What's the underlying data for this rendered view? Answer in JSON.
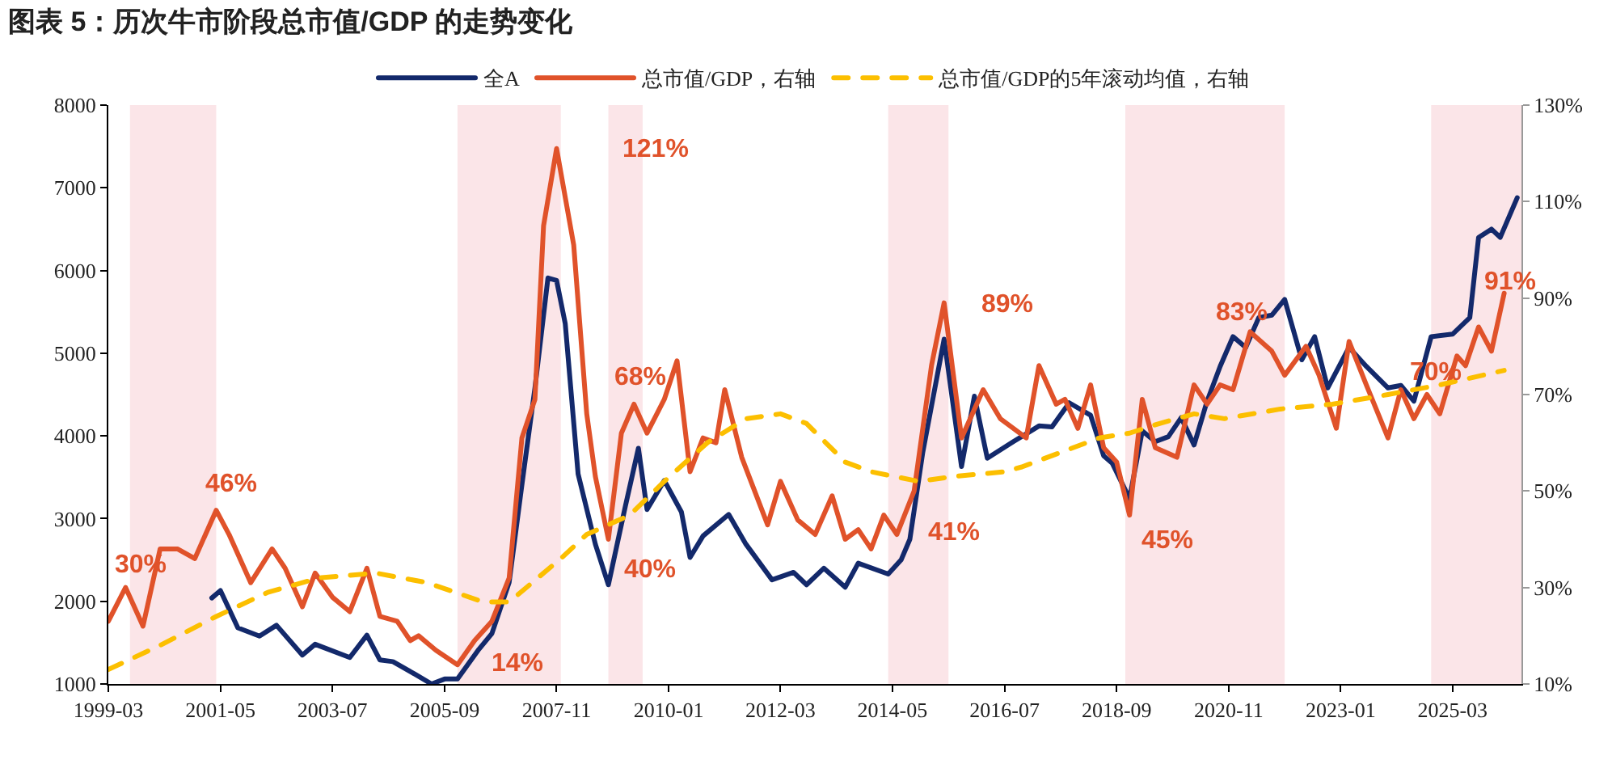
{
  "chart_data": {
    "type": "line",
    "title": "图表 5：历次牛市阶段总市值/GDP 的走势变化",
    "xlim": [
      "1999-03",
      "2026-07"
    ],
    "xticks": [
      "1999-03",
      "2001-05",
      "2003-07",
      "2005-09",
      "2007-11",
      "2010-01",
      "2012-03",
      "2014-05",
      "2016-07",
      "2018-09",
      "2020-11",
      "2023-01",
      "2025-03"
    ],
    "ylim": [
      1000,
      8000
    ],
    "yticks": [
      1000,
      2000,
      3000,
      4000,
      5000,
      6000,
      7000,
      8000
    ],
    "y2lim": [
      10,
      130
    ],
    "y2ticks": [
      {
        "value": 10,
        "label": "10%"
      },
      {
        "value": 30,
        "label": "30%"
      },
      {
        "value": 50,
        "label": "50%"
      },
      {
        "value": 70,
        "label": "70%"
      },
      {
        "value": 90,
        "label": "90%"
      },
      {
        "value": 110,
        "label": "110%"
      },
      {
        "value": 130,
        "label": "130%"
      }
    ],
    "grid": false,
    "legend": "top",
    "marker": "none",
    "series": [
      {
        "name": "全A",
        "color": "#13296b",
        "line_style": "solid",
        "x": [
          "2001-03",
          "2001-05",
          "2001-09",
          "2002-02",
          "2002-06",
          "2002-12",
          "2003-03",
          "2003-11",
          "2004-03",
          "2004-06",
          "2004-09",
          "2005-02",
          "2005-06",
          "2005-09",
          "2005-12",
          "2006-05",
          "2006-08",
          "2006-12",
          "2007-03",
          "2007-06",
          "2007-09",
          "2007-11",
          "2008-01",
          "2008-04",
          "2008-08",
          "2008-11",
          "2009-03",
          "2009-06",
          "2009-08",
          "2009-12",
          "2010-04",
          "2010-06",
          "2010-09",
          "2011-03",
          "2011-07",
          "2012-01",
          "2012-06",
          "2012-09",
          "2013-01",
          "2013-06",
          "2013-09",
          "2014-04",
          "2014-07",
          "2014-09",
          "2014-12",
          "2015-05",
          "2015-09",
          "2015-12",
          "2016-03",
          "2016-09",
          "2017-03",
          "2017-06",
          "2017-10",
          "2018-03",
          "2018-06",
          "2018-08",
          "2018-12",
          "2019-03",
          "2019-06",
          "2019-09",
          "2019-12",
          "2020-03",
          "2020-06",
          "2020-09",
          "2020-12",
          "2021-03",
          "2021-06",
          "2021-09",
          "2021-12",
          "2022-04",
          "2022-07",
          "2022-10",
          "2023-03",
          "2023-07",
          "2023-12",
          "2024-03",
          "2024-06",
          "2024-10",
          "2025-03",
          "2025-07",
          "2025-09",
          "2025-12",
          "2026-02",
          "2026-06"
        ],
        "values": [
          2040,
          2130,
          1680,
          1580,
          1710,
          1350,
          1480,
          1320,
          1590,
          1290,
          1270,
          1120,
          1000,
          1060,
          1060,
          1420,
          1610,
          2230,
          3410,
          4580,
          5910,
          5880,
          5360,
          3540,
          2690,
          2200,
          3150,
          3850,
          3110,
          3460,
          3080,
          2530,
          2790,
          3050,
          2690,
          2260,
          2350,
          2200,
          2400,
          2170,
          2460,
          2330,
          2500,
          2750,
          3800,
          5170,
          3630,
          4480,
          3730,
          3930,
          4120,
          4110,
          4400,
          4250,
          3760,
          3670,
          3240,
          4060,
          3930,
          3990,
          4220,
          3890,
          4420,
          4840,
          5200,
          5070,
          5430,
          5460,
          5650,
          4920,
          5200,
          4580,
          5070,
          4840,
          4580,
          4610,
          4420,
          5200,
          5230,
          5430,
          6400,
          6500,
          6400,
          6880
        ]
      },
      {
        "name": "总市值/GDP，右轴",
        "color": "#e0522a",
        "line_style": "solid",
        "axis": "y2",
        "x": [
          "1999-03",
          "1999-07",
          "1999-11",
          "2000-03",
          "2000-07",
          "2000-11",
          "2001-04",
          "2001-07",
          "2001-12",
          "2002-05",
          "2002-08",
          "2002-12",
          "2003-03",
          "2003-07",
          "2003-11",
          "2004-03",
          "2004-06",
          "2004-10",
          "2005-01",
          "2005-03",
          "2005-07",
          "2005-12",
          "2006-04",
          "2006-08",
          "2006-12",
          "2007-03",
          "2007-06",
          "2007-08",
          "2007-11",
          "2008-03",
          "2008-06",
          "2008-08",
          "2008-11",
          "2009-02",
          "2009-05",
          "2009-08",
          "2009-12",
          "2010-03",
          "2010-06",
          "2010-09",
          "2010-12",
          "2011-02",
          "2011-06",
          "2011-12",
          "2012-03",
          "2012-07",
          "2012-11",
          "2013-03",
          "2013-06",
          "2013-09",
          "2013-12",
          "2014-03",
          "2014-06",
          "2014-10",
          "2015-02",
          "2015-05",
          "2015-09",
          "2016-02",
          "2016-06",
          "2016-12",
          "2017-03",
          "2017-07",
          "2017-09",
          "2017-12",
          "2018-03",
          "2018-06",
          "2018-09",
          "2018-12",
          "2019-03",
          "2019-06",
          "2019-11",
          "2020-03",
          "2020-06",
          "2020-09",
          "2020-12",
          "2021-04",
          "2021-09",
          "2021-12",
          "2022-05",
          "2022-08",
          "2022-12",
          "2023-03",
          "2023-07",
          "2023-12",
          "2024-03",
          "2024-06",
          "2024-09",
          "2024-12",
          "2025-04",
          "2025-06",
          "2025-09",
          "2025-12",
          "2026-03"
        ],
        "values": [
          23,
          30,
          22,
          38,
          38,
          36,
          46,
          41,
          31,
          38,
          34,
          26,
          33,
          28,
          25,
          34,
          24,
          23,
          19,
          20,
          17,
          14,
          19,
          23,
          32,
          61,
          69,
          105,
          121,
          101,
          66,
          53,
          40,
          62,
          68,
          62,
          69,
          77,
          54,
          61,
          60,
          71,
          57,
          43,
          52,
          44,
          41,
          49,
          40,
          42,
          38,
          45,
          41,
          50,
          76,
          89,
          61,
          71,
          65,
          61,
          76,
          68,
          69,
          63,
          72,
          59,
          56,
          45,
          69,
          59,
          57,
          72,
          68,
          72,
          71,
          83,
          79,
          74,
          80,
          74,
          63,
          81,
          72,
          61,
          71,
          65,
          70,
          66,
          78,
          76,
          84,
          79,
          91
        ]
      },
      {
        "name": "总市值/GDP的5年滚动均值，右轴",
        "color": "#fcbf00",
        "line_style": "dashed",
        "axis": "y2",
        "x": [
          "1999-03",
          "2000-03",
          "2001-04",
          "2002-04",
          "2003-04",
          "2004-05",
          "2005-05",
          "2006-06",
          "2006-12",
          "2007-12",
          "2008-06",
          "2009-04",
          "2009-12",
          "2010-10",
          "2011-07",
          "2012-03",
          "2012-09",
          "2013-06",
          "2013-12",
          "2014-11",
          "2015-07",
          "2016-07",
          "2016-11",
          "2017-08",
          "2018-05",
          "2018-12",
          "2019-07",
          "2020-03",
          "2020-10",
          "2021-11",
          "2022-11",
          "2023-12",
          "2024-12",
          "2026-03"
        ],
        "values": [
          13,
          18,
          24,
          29,
          32,
          33,
          31,
          27,
          27,
          36,
          41,
          45,
          52,
          60,
          65,
          66,
          64,
          56,
          54,
          52,
          53,
          54,
          55,
          58,
          61,
          62,
          64,
          66,
          65,
          67,
          68,
          70,
          72,
          75
        ]
      }
    ],
    "bands": [
      {
        "axis": "x",
        "from": "1999-08",
        "to": "2001-04",
        "color": "#fbe5e8"
      },
      {
        "axis": "x",
        "from": "2005-12",
        "to": "2007-12",
        "color": "#fbe5e8"
      },
      {
        "axis": "x",
        "from": "2008-11",
        "to": "2009-07",
        "color": "#fbe5e8"
      },
      {
        "axis": "x",
        "from": "2014-04",
        "to": "2015-06",
        "color": "#fbe5e8"
      },
      {
        "axis": "x",
        "from": "2018-11",
        "to": "2021-12",
        "color": "#fbe5e8"
      },
      {
        "axis": "x",
        "from": "2024-10",
        "to": "2026-07",
        "color": "#fbe5e8"
      }
    ],
    "annotations": [
      "30%",
      "46%",
      "14%",
      "121%",
      "68%",
      "40%",
      "41%",
      "89%",
      "45%",
      "83%",
      "70%",
      "91%"
    ]
  }
}
